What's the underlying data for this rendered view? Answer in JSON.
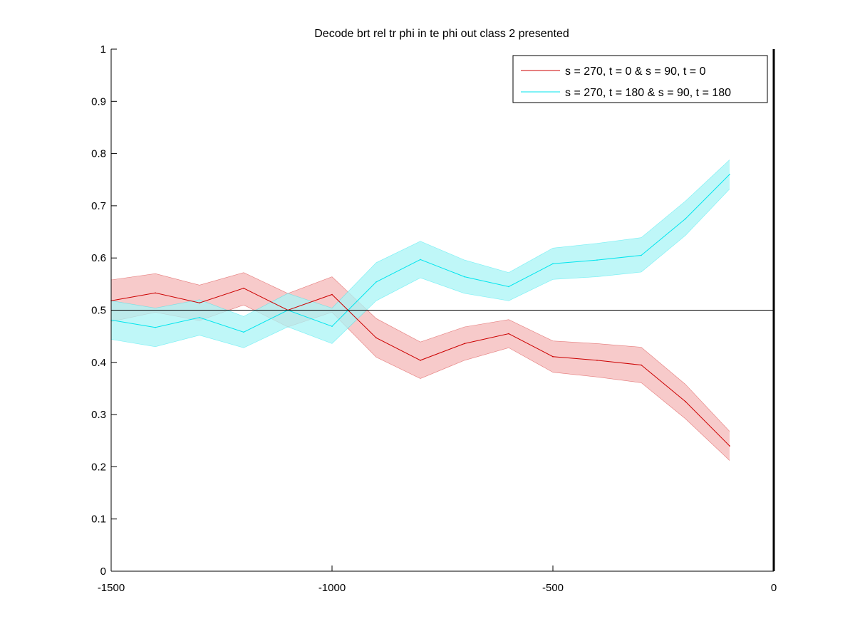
{
  "chart_data": {
    "type": "line",
    "title": "Decode brt rel tr phi in te phi out  class 2 presented",
    "xlabel": "",
    "ylabel": "",
    "xlim": [
      -1500,
      0
    ],
    "ylim": [
      0,
      1
    ],
    "xticks": [
      "-1500",
      "-1000",
      "-500",
      "0"
    ],
    "xtick_values": [
      -1500,
      -1000,
      -500,
      0
    ],
    "yticks": [
      "0",
      "0.1",
      "0.2",
      "0.3",
      "0.4",
      "0.5",
      "0.6",
      "0.7",
      "0.8",
      "0.9",
      "1"
    ],
    "ytick_values": [
      0,
      0.1,
      0.2,
      0.3,
      0.4,
      0.5,
      0.6,
      0.7,
      0.8,
      0.9,
      1
    ],
    "grid": false,
    "legend_position": "top-right",
    "reference_line_y": 0.5,
    "reference_line_x": 0,
    "x": [
      -1500,
      -1400,
      -1300,
      -1200,
      -1100,
      -1000,
      -900,
      -800,
      -700,
      -600,
      -500,
      -400,
      -300,
      -200,
      -100
    ],
    "series": [
      {
        "name": "s = 270, t = 0 & s = 90, t = 0",
        "color": "#cc0000",
        "band_color": "#f4b8b8",
        "values": [
          0.518,
          0.533,
          0.514,
          0.542,
          0.5,
          0.53,
          0.447,
          0.404,
          0.436,
          0.455,
          0.411,
          0.404,
          0.395,
          0.325,
          0.24
        ],
        "lower": [
          0.478,
          0.496,
          0.48,
          0.51,
          0.468,
          0.496,
          0.41,
          0.369,
          0.404,
          0.428,
          0.381,
          0.372,
          0.361,
          0.292,
          0.212
        ],
        "upper": [
          0.558,
          0.57,
          0.548,
          0.572,
          0.532,
          0.564,
          0.484,
          0.439,
          0.468,
          0.482,
          0.441,
          0.436,
          0.429,
          0.358,
          0.268
        ]
      },
      {
        "name": "s = 270, t = 180 & s = 90, t = 180",
        "color": "#00e5ee",
        "band_color": "#aaf4f6",
        "values": [
          0.481,
          0.467,
          0.486,
          0.458,
          0.5,
          0.469,
          0.554,
          0.597,
          0.564,
          0.545,
          0.589,
          0.596,
          0.605,
          0.675,
          0.76
        ],
        "lower": [
          0.444,
          0.43,
          0.452,
          0.428,
          0.468,
          0.436,
          0.518,
          0.562,
          0.532,
          0.518,
          0.559,
          0.564,
          0.573,
          0.643,
          0.732
        ],
        "upper": [
          0.518,
          0.504,
          0.52,
          0.488,
          0.532,
          0.504,
          0.591,
          0.632,
          0.596,
          0.572,
          0.619,
          0.628,
          0.639,
          0.709,
          0.788
        ]
      }
    ]
  },
  "colors": {
    "axis": "#000000",
    "reference_line": "#000000",
    "background": "#ffffff"
  }
}
